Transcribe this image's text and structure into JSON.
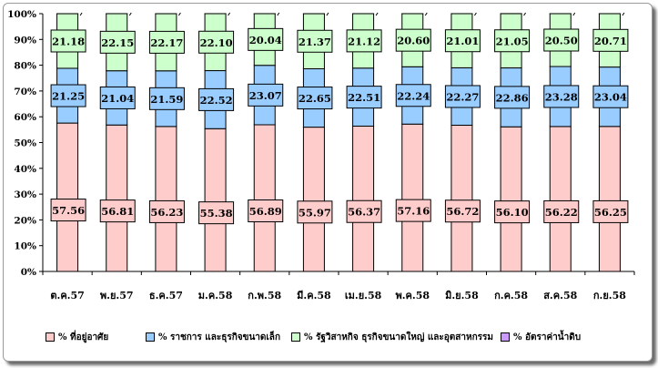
{
  "chart_data": {
    "type": "bar",
    "stacked": true,
    "percent_stacked": true,
    "categories": [
      "ต.ค.57",
      "พ.ย.57",
      "ธ.ค.57",
      "ม.ค.58",
      "ก.พ.58",
      "มี.ค.58",
      "เม.ย.58",
      "พ.ค.58",
      "มิ.ย.58",
      "ก.ค.58",
      "ส.ค.58",
      "ก.ย.58"
    ],
    "series": [
      {
        "name": "% ที่อยู่อาศัย",
        "color": "#ffcccc",
        "values": [
          57.56,
          56.81,
          56.23,
          55.38,
          56.89,
          55.97,
          56.37,
          57.16,
          56.72,
          56.1,
          56.22,
          56.25
        ]
      },
      {
        "name": "% ราชการ และธุรกิจขนาดเล็ก",
        "color": "#99ccff",
        "values": [
          21.25,
          21.04,
          21.59,
          22.52,
          23.07,
          22.65,
          22.51,
          22.24,
          22.27,
          22.86,
          23.28,
          23.04
        ]
      },
      {
        "name": "% รัฐวิสาหกิจ ธุรกิจขนาดใหญ่ และอุตสาหกรรม",
        "color": "#ccffcc",
        "values": [
          21.18,
          22.15,
          22.17,
          22.1,
          20.04,
          21.37,
          21.12,
          20.6,
          21.01,
          21.05,
          20.5,
          20.71
        ]
      },
      {
        "name": "% อัตราค่าน้ำดิบ",
        "color": "#cc99ff",
        "values": [
          0.01,
          0.01,
          0.01,
          0.01,
          0.01,
          0.01,
          0.01,
          0.01,
          0.01,
          0.01,
          0.01,
          0.01
        ]
      }
    ],
    "y_ticks": [
      "0%",
      "10%",
      "20%",
      "30%",
      "40%",
      "50%",
      "60%",
      "70%",
      "80%",
      "90%",
      "100%"
    ],
    "ylim": [
      0,
      100
    ],
    "legend_position": "bottom",
    "grid": false
  }
}
